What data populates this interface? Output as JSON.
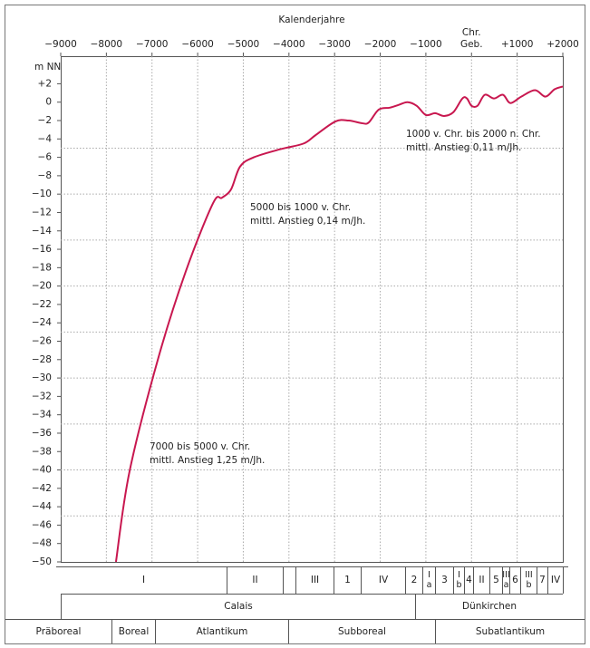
{
  "chart_data": {
    "type": "line",
    "x_label": "Kalenderjahre",
    "y_label": "m NN",
    "xlim": [
      -9000,
      2000
    ],
    "xticks": [
      {
        "value": -9000,
        "label": "−9000"
      },
      {
        "value": -8000,
        "label": "−8000"
      },
      {
        "value": -7000,
        "label": "−7000"
      },
      {
        "value": -6000,
        "label": "−6000"
      },
      {
        "value": -5000,
        "label": "−5000"
      },
      {
        "value": -4000,
        "label": "−4000"
      },
      {
        "value": -3000,
        "label": "−3000"
      },
      {
        "value": -2000,
        "label": "−2000"
      },
      {
        "value": -1000,
        "label": "−1000"
      },
      {
        "value": 0,
        "label": "Chr. Geb."
      },
      {
        "value": 1000,
        "label": "+1000"
      },
      {
        "value": 2000,
        "label": "+2000"
      }
    ],
    "ylim": [
      -50,
      5
    ],
    "yticks": [
      {
        "value": 2,
        "label": "+2"
      },
      0,
      {
        "value": -2,
        "label": "−2"
      },
      {
        "value": -4,
        "label": "−4"
      },
      {
        "value": -6,
        "label": "−6"
      },
      {
        "value": -8,
        "label": "−8"
      },
      {
        "value": -10,
        "label": "−10"
      },
      {
        "value": -12,
        "label": "−12"
      },
      {
        "value": -14,
        "label": "−14"
      },
      {
        "value": -16,
        "label": "−16"
      },
      {
        "value": -18,
        "label": "−18"
      },
      {
        "value": -20,
        "label": "−20"
      },
      {
        "value": -22,
        "label": "−22"
      },
      {
        "value": -24,
        "label": "−24"
      },
      {
        "value": -26,
        "label": "−26"
      },
      {
        "value": -28,
        "label": "−28"
      },
      {
        "value": -30,
        "label": "−30"
      },
      {
        "value": -32,
        "label": "−32"
      },
      {
        "value": -34,
        "label": "−34"
      },
      {
        "value": -36,
        "label": "−36"
      },
      {
        "value": -38,
        "label": "−38"
      },
      {
        "value": -40,
        "label": "−40"
      },
      {
        "value": -42,
        "label": "−42"
      },
      {
        "value": -44,
        "label": "−44"
      },
      {
        "value": -46,
        "label": "−46"
      },
      {
        "value": -48,
        "label": "−48"
      },
      {
        "value": -50,
        "label": "−50"
      }
    ],
    "grid": true,
    "ygrid": [
      -5,
      -10,
      -15,
      -20,
      -25,
      -30,
      -35,
      -40,
      -45
    ],
    "series": [
      {
        "color": "#c8174f",
        "x": [
          -7790,
          -7490,
          -6855,
          -6260,
          -5664,
          -5470,
          -5270,
          -5070,
          -4770,
          -4175,
          -3680,
          -3420,
          -2983,
          -2690,
          -2390,
          -2250,
          -2030,
          -1790,
          -1600,
          -1400,
          -1200,
          -1000,
          -800,
          -600,
          -400,
          -200,
          -100,
          0,
          130,
          290,
          490,
          690,
          850,
          1090,
          1390,
          1620,
          1820,
          2000
        ],
        "values": [
          -50,
          -40.1,
          -27.7,
          -18.4,
          -11.0,
          -10.4,
          -9.5,
          -7.0,
          -6.0,
          -5.1,
          -4.5,
          -3.6,
          -2.1,
          -2.0,
          -2.3,
          -2.2,
          -0.8,
          -0.6,
          -0.3,
          0,
          -0.4,
          -1.4,
          -1.2,
          -1.5,
          -1.1,
          0.4,
          0.4,
          -0.4,
          -0.4,
          0.8,
          0.4,
          0.8,
          -0.1,
          0.6,
          1.3,
          0.6,
          1.4,
          1.7
        ]
      }
    ],
    "annotations": [
      {
        "lines": [
          "1000 v. Chr. bis 2000 n. Chr.",
          "mittl. Anstieg 0,11 m/Jh."
        ]
      },
      {
        "lines": [
          "5000 bis 1000 v. Chr.",
          "mittl. Anstieg 0,14 m/Jh."
        ]
      },
      {
        "lines": [
          "7000 bis 5000 v. Chr.",
          "mittl. Anstieg 1,25 m/Jh."
        ]
      }
    ]
  },
  "zones": {
    "rows": [
      [
        {
          "label": "I"
        },
        {
          "label": "II"
        },
        {
          "label": "III"
        },
        {
          "label": "1"
        },
        {
          "label": "IV"
        },
        {
          "label": "2"
        },
        {
          "top": "I",
          "bottom": "a"
        },
        {
          "label": "3"
        },
        {
          "top": "I",
          "bottom": "b"
        },
        {
          "label": "4"
        },
        {
          "label": "II"
        },
        {
          "label": "5"
        },
        {
          "top": "III",
          "bottom": "a"
        },
        {
          "label": "6"
        },
        {
          "top": "III",
          "bottom": "b"
        },
        {
          "label": "7"
        },
        {
          "label": "IV"
        }
      ],
      [
        {
          "label": "Calais"
        },
        {
          "label": "Dünkirchen"
        }
      ],
      [
        {
          "label": "Präboreal"
        },
        {
          "label": "Boreal"
        },
        {
          "label": "Atlantikum"
        },
        {
          "label": "Subboreal"
        },
        {
          "label": "Subatlantikum"
        }
      ]
    ]
  }
}
